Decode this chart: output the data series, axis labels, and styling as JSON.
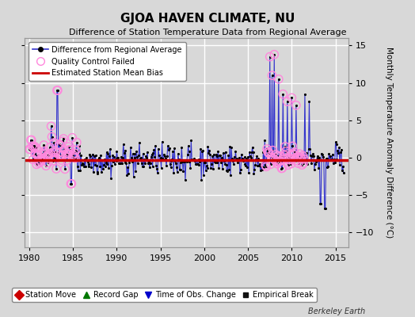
{
  "title": "GJOA HAVEN CLIMATE, NU",
  "subtitle": "Difference of Station Temperature Data from Regional Average",
  "ylabel": "Monthly Temperature Anomaly Difference (°C)",
  "xlim": [
    1979.5,
    2016.5
  ],
  "ylim": [
    -12,
    16
  ],
  "yticks": [
    -10,
    -5,
    0,
    5,
    10,
    15
  ],
  "xticks": [
    1980,
    1985,
    1990,
    1995,
    2000,
    2005,
    2010,
    2015
  ],
  "background_color": "#d8d8d8",
  "plot_bg_color": "#d8d8d8",
  "grid_color": "#ffffff",
  "bias_line_color": "#cc0000",
  "main_line_color": "#3333cc",
  "dot_color": "#000000",
  "qc_color": "#ff88dd",
  "watermark": "Berkeley Earth",
  "legend1_items": [
    "Difference from Regional Average",
    "Quality Control Failed",
    "Estimated Station Mean Bias"
  ],
  "legend2_items": [
    "Station Move",
    "Record Gap",
    "Time of Obs. Change",
    "Empirical Break"
  ],
  "bias_value": -0.3,
  "seed": 42
}
